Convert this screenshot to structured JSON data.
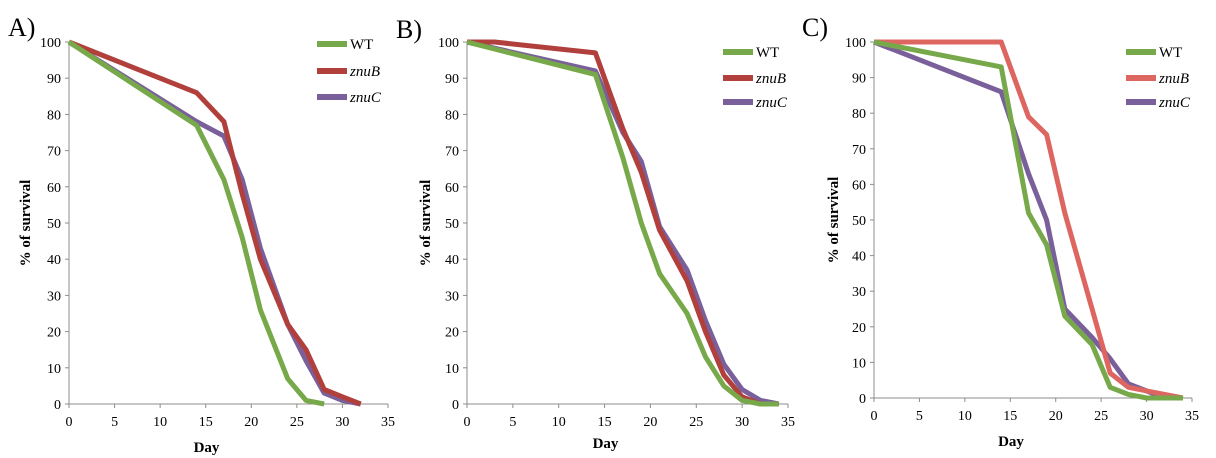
{
  "chart_data": [
    {
      "panel": "A)",
      "type": "line",
      "xlabel": "Day",
      "ylabel": "% of survival",
      "xlim": [
        0,
        35
      ],
      "ylim": [
        0,
        100
      ],
      "xticks": [
        "0",
        "5",
        "10",
        "15",
        "20",
        "25",
        "30",
        "35"
      ],
      "yticks": [
        "0",
        "10",
        "20",
        "30",
        "40",
        "50",
        "60",
        "70",
        "80",
        "90",
        "100"
      ],
      "grid": false,
      "legend": "top-right",
      "series": [
        {
          "name": "WT",
          "italic": false,
          "color": "#77a94a",
          "x": [
            0,
            14,
            17,
            19,
            21,
            24,
            26,
            28
          ],
          "y": [
            100,
            77,
            62,
            46,
            26,
            7,
            1,
            0
          ]
        },
        {
          "name": "znuB",
          "italic": true,
          "color": "#b1403d",
          "x": [
            0,
            14,
            17,
            19,
            21,
            24,
            26,
            28,
            30,
            32
          ],
          "y": [
            100,
            86,
            78,
            58,
            40,
            22,
            15,
            4,
            2,
            0
          ]
        },
        {
          "name": "znuC",
          "italic": true,
          "color": "#7a609b",
          "x": [
            0,
            14,
            17,
            19,
            21,
            24,
            26,
            28,
            30,
            32
          ],
          "y": [
            100,
            78,
            74,
            62,
            43,
            22,
            12,
            3,
            1,
            0
          ]
        }
      ]
    },
    {
      "panel": "B)",
      "type": "line",
      "xlabel": "Day",
      "ylabel": "% of survival",
      "xlim": [
        0,
        35
      ],
      "ylim": [
        0,
        100
      ],
      "xticks": [
        "0",
        "5",
        "10",
        "15",
        "20",
        "25",
        "30",
        "35"
      ],
      "yticks": [
        "0",
        "10",
        "20",
        "30",
        "40",
        "50",
        "60",
        "70",
        "80",
        "90",
        "100"
      ],
      "grid": false,
      "legend": "top-right",
      "series": [
        {
          "name": "WT",
          "italic": false,
          "color": "#77a94a",
          "x": [
            0,
            14,
            17,
            19,
            21,
            24,
            26,
            28,
            30,
            32,
            34
          ],
          "y": [
            100,
            91,
            68,
            50,
            36,
            25,
            13,
            5,
            1,
            0,
            0
          ]
        },
        {
          "name": "znuB",
          "italic": true,
          "color": "#b1403d",
          "x": [
            0,
            3,
            14,
            17,
            19,
            21,
            24,
            26,
            28,
            30,
            32,
            34
          ],
          "y": [
            100,
            100,
            97,
            76,
            64,
            48,
            34,
            20,
            8,
            2,
            0,
            0
          ]
        },
        {
          "name": "znuC",
          "italic": true,
          "color": "#7a609b",
          "x": [
            0,
            14,
            17,
            19,
            21,
            24,
            26,
            28,
            30,
            32,
            34
          ],
          "y": [
            100,
            92,
            75,
            67,
            49,
            37,
            23,
            11,
            4,
            1,
            0
          ]
        }
      ]
    },
    {
      "panel": "C)",
      "type": "line",
      "xlabel": "Day",
      "ylabel": "% of survival",
      "xlim": [
        0,
        35
      ],
      "ylim": [
        0,
        100
      ],
      "xticks": [
        "0",
        "5",
        "10",
        "15",
        "20",
        "25",
        "30",
        "35"
      ],
      "yticks": [
        "0",
        "10",
        "20",
        "30",
        "40",
        "50",
        "60",
        "70",
        "80",
        "90",
        "100"
      ],
      "grid": false,
      "legend": "top-right",
      "series": [
        {
          "name": "WT",
          "italic": false,
          "color": "#77a94a",
          "x": [
            0,
            14,
            17,
            19,
            21,
            24,
            26,
            28,
            30,
            32,
            34
          ],
          "y": [
            100,
            93,
            52,
            43,
            23,
            15,
            3,
            1,
            0,
            0,
            0
          ]
        },
        {
          "name": "znuB",
          "italic": true,
          "color": "#de6660",
          "x": [
            0,
            14,
            17,
            19,
            21,
            24,
            26,
            28,
            30,
            32,
            34
          ],
          "y": [
            100,
            100,
            79,
            74,
            52,
            25,
            7,
            3,
            2,
            1,
            0
          ]
        },
        {
          "name": "znuC",
          "italic": true,
          "color": "#7a609b",
          "x": [
            0,
            14,
            17,
            19,
            21,
            24,
            26,
            28,
            30,
            32,
            34
          ],
          "y": [
            100,
            86,
            63,
            50,
            25,
            17,
            11,
            4,
            2,
            0,
            0
          ]
        }
      ]
    }
  ]
}
